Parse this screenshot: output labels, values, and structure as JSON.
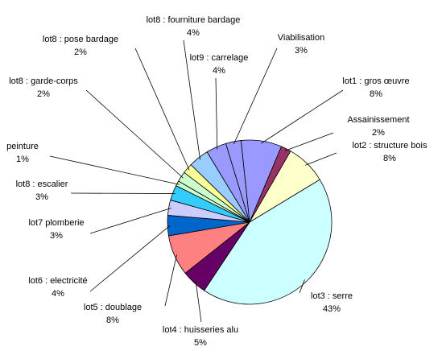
{
  "chart_data": {
    "type": "pie",
    "title": "",
    "start_angle_deg": 96,
    "direction": "clockwise",
    "legend": "none",
    "slices": [
      {
        "label": "lot1 : gros œuvre",
        "value": 8,
        "value_label": "8%",
        "color": "#9999ff"
      },
      {
        "label": "Assainissement",
        "value": 2,
        "value_label": "2%",
        "color": "#993366"
      },
      {
        "label": "lot2 : structure bois",
        "value": 8,
        "value_label": "8%",
        "color": "#ffffcc"
      },
      {
        "label": "lot3 : serre",
        "value": 43,
        "value_label": "43%",
        "color": "#ccffff"
      },
      {
        "label": "lot4 : huisseries alu",
        "value": 5,
        "value_label": "5%",
        "color": "#660066"
      },
      {
        "label": "lot5 : doublage",
        "value": 8,
        "value_label": "8%",
        "color": "#ff8080"
      },
      {
        "label": "lot6 : electricité",
        "value": 4,
        "value_label": "4%",
        "color": "#0066cc"
      },
      {
        "label": "lot7 plomberie",
        "value": 3,
        "value_label": "3%",
        "color": "#ccccff"
      },
      {
        "label": "lot8 : escalier",
        "value": 3,
        "value_label": "3%",
        "color": "#33ccff"
      },
      {
        "label": "peinture",
        "value": 1,
        "value_label": "1%",
        "color": "#ccffcc"
      },
      {
        "label": "lot8 : garde-corps",
        "value": 2,
        "value_label": "2%",
        "color": "#ccffcc"
      },
      {
        "label": "lot8 : pose bardage",
        "value": 2,
        "value_label": "2%",
        "color": "#ffff99"
      },
      {
        "label": "lot8 : fourniture bardage",
        "value": 4,
        "value_label": "4%",
        "color": "#99ccff"
      },
      {
        "label": "lot9 : carrelage",
        "value": 4,
        "value_label": "4%",
        "color": "#9999ff"
      },
      {
        "label": "Viabilisation",
        "value": 3,
        "value_label": "3%",
        "color": "#9999ff"
      }
    ]
  }
}
